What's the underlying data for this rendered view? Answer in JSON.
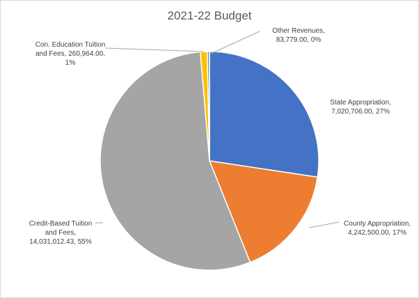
{
  "chart_data": {
    "type": "pie",
    "title": "2021-22 Budget",
    "legend": "none",
    "slices": [
      {
        "name": "State Appropriation",
        "value": 7020706.0,
        "value_label": "7,020,706.00",
        "percent_label": "27%",
        "color": "#4472C4"
      },
      {
        "name": "County Appropriation",
        "value": 4242500.0,
        "value_label": "4,242,500.00",
        "percent_label": "17%",
        "color": "#ED7D31"
      },
      {
        "name": "Credit-Based Tuition and Fees",
        "value": 14031012.43,
        "value_label": "14,031,012.43",
        "percent_label": "55%",
        "color": "#A5A5A5"
      },
      {
        "name": "Con. Education Tuition and Fees",
        "value": 260964.0,
        "value_label": "260,964.00",
        "percent_label": "1%",
        "color": "#FFC000"
      },
      {
        "name": "Other Revenues",
        "value": 83779.0,
        "value_label": "83,779.00",
        "percent_label": "0%",
        "color": "#5B9BD5"
      }
    ],
    "data_labels": [
      {
        "slice": 0,
        "lines": [
          "State Appropriation,",
          "7,020,706.00, 27%"
        ]
      },
      {
        "slice": 1,
        "lines": [
          "County Appropriation,",
          "4,242,500.00, 17%"
        ]
      },
      {
        "slice": 2,
        "lines": [
          "Credit-Based Tuition",
          "and Fees,",
          "14,031,012.43, 55%"
        ]
      },
      {
        "slice": 3,
        "lines": [
          "Con. Education Tuition",
          "and Fees, 260,964.00,",
          "1%"
        ]
      },
      {
        "slice": 4,
        "lines": [
          "Other Revenues,",
          "83,779.00, 0%"
        ]
      }
    ]
  }
}
